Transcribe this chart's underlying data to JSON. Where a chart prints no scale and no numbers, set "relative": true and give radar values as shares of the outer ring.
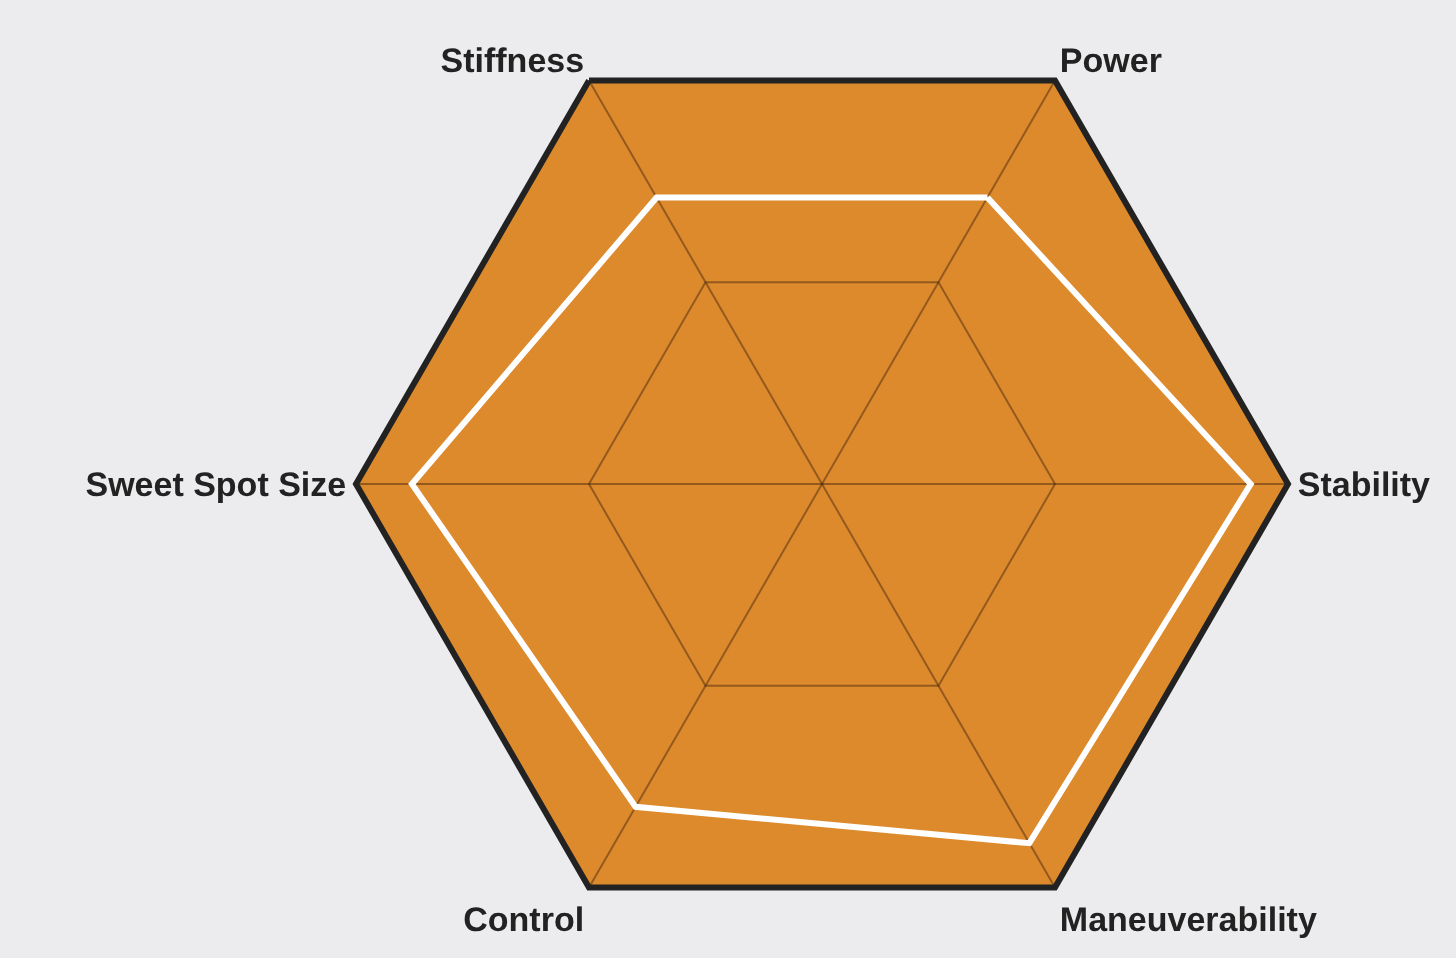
{
  "chart_data": {
    "type": "radar",
    "relative": true,
    "grid": true,
    "categories": [
      "Power",
      "Stability",
      "Maneuverability",
      "Control",
      "Sweet Spot Size",
      "Stiffness"
    ],
    "series": [
      {
        "color": "#ffffff",
        "values": [
          0.71,
          0.92,
          0.89,
          0.8,
          0.88,
          0.71
        ]
      }
    ]
  }
}
